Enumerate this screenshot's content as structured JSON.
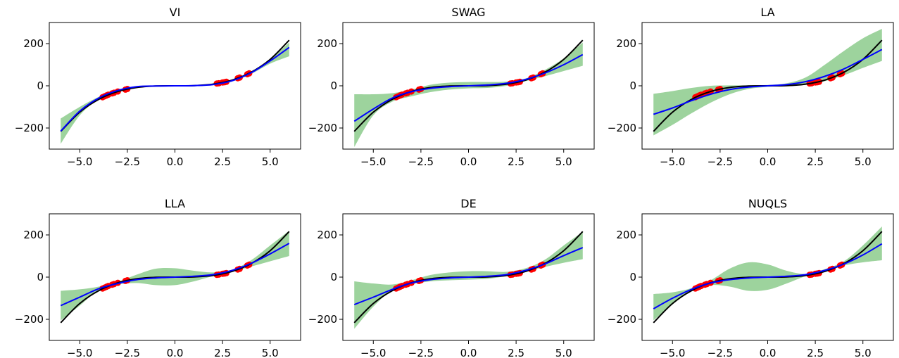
{
  "figure": {
    "background": "#ffffff",
    "colors": {
      "truth": "#000000",
      "mean": "#0000ff",
      "band": "#4cae4c",
      "points": "#ff0000"
    }
  },
  "chart_data": [
    {
      "type": "line",
      "title": "VI",
      "xlabel": "",
      "ylabel": "",
      "xlim": [
        -6.6,
        6.6
      ],
      "ylim": [
        -300,
        300
      ],
      "xticks": [
        -5.0,
        -2.5,
        0.0,
        2.5,
        5.0
      ],
      "yticks": [
        -200,
        0,
        200
      ],
      "xtick_labels": [
        "−5.0",
        "−2.5",
        "0.0",
        "2.5",
        "5.0"
      ],
      "ytick_labels": [
        "−200",
        "0",
        "200"
      ],
      "grid": false,
      "series": [
        {
          "role": "truth",
          "x": [
            -6,
            -5,
            -4,
            -3,
            -2,
            -1,
            0,
            1,
            2,
            3,
            4,
            5,
            6
          ],
          "y": [
            -216,
            -125,
            -64,
            -27,
            -8,
            -1,
            0,
            1,
            8,
            27,
            64,
            125,
            216
          ]
        },
        {
          "role": "mean",
          "x": [
            -6,
            -5,
            -4,
            -3,
            -2,
            -1,
            0,
            1,
            2,
            3,
            4,
            5,
            6
          ],
          "y": [
            -215,
            -120,
            -58,
            -22,
            -4,
            -1,
            0,
            1,
            6,
            24,
            62,
            118,
            182
          ]
        },
        {
          "role": "band",
          "x": [
            -6,
            -5,
            -4,
            -3,
            -2,
            -1,
            0,
            1,
            2,
            3,
            4,
            5,
            6
          ],
          "upper": [
            -155,
            -100,
            -52,
            -18,
            -2,
            0,
            1,
            2,
            8,
            28,
            68,
            125,
            205
          ],
          "lower": [
            -275,
            -140,
            -64,
            -28,
            -6,
            -2,
            -1,
            0,
            4,
            20,
            56,
            105,
            140
          ]
        },
        {
          "role": "points",
          "x": [
            -3.8,
            -3.7,
            -3.6,
            -3.5,
            -3.3,
            -3.2,
            -3.0,
            -2.6,
            -2.5,
            2.2,
            2.3,
            2.5,
            2.6,
            2.7,
            3.3,
            3.4,
            3.8,
            3.9
          ],
          "y": [
            -54,
            -50,
            -46,
            -42,
            -36,
            -33,
            -27,
            -18,
            -15,
            11,
            12,
            16,
            17,
            19,
            36,
            39,
            55,
            59
          ]
        }
      ]
    },
    {
      "type": "line",
      "title": "SWAG",
      "xlabel": "",
      "ylabel": "",
      "xlim": [
        -6.6,
        6.6
      ],
      "ylim": [
        -300,
        300
      ],
      "xticks": [
        -5.0,
        -2.5,
        0.0,
        2.5,
        5.0
      ],
      "yticks": [
        -200,
        0,
        200
      ],
      "xtick_labels": [
        "−5.0",
        "−2.5",
        "0.0",
        "2.5",
        "5.0"
      ],
      "ytick_labels": [
        "−200",
        "0",
        "200"
      ],
      "grid": false,
      "series": [
        {
          "role": "truth",
          "x": [
            -6,
            -5,
            -4,
            -3,
            -2,
            -1,
            0,
            1,
            2,
            3,
            4,
            5,
            6
          ],
          "y": [
            -216,
            -125,
            -64,
            -27,
            -8,
            -1,
            0,
            1,
            8,
            27,
            64,
            125,
            216
          ]
        },
        {
          "role": "mean",
          "x": [
            -6,
            -5,
            -4,
            -3,
            -2,
            -1,
            0,
            1,
            2,
            3,
            4,
            5,
            6
          ],
          "y": [
            -168,
            -110,
            -58,
            -28,
            -12,
            -4,
            0,
            4,
            12,
            30,
            60,
            100,
            148
          ]
        },
        {
          "role": "band",
          "x": [
            -6,
            -5,
            -4,
            -3,
            -2,
            -1,
            0,
            1,
            2,
            3,
            4,
            5,
            6
          ],
          "upper": [
            -40,
            -40,
            -35,
            -18,
            5,
            15,
            18,
            18,
            20,
            35,
            75,
            130,
            205
          ],
          "lower": [
            -290,
            -140,
            -75,
            -50,
            -30,
            -18,
            -12,
            -10,
            0,
            22,
            45,
            70,
            95
          ]
        },
        {
          "role": "points",
          "x": [
            -3.8,
            -3.7,
            -3.6,
            -3.5,
            -3.3,
            -3.2,
            -3.0,
            -2.6,
            -2.5,
            2.2,
            2.3,
            2.5,
            2.6,
            2.7,
            3.3,
            3.4,
            3.8,
            3.9
          ],
          "y": [
            -54,
            -50,
            -46,
            -42,
            -36,
            -33,
            -27,
            -18,
            -15,
            11,
            12,
            16,
            17,
            19,
            36,
            39,
            55,
            59
          ]
        }
      ]
    },
    {
      "type": "line",
      "title": "LA",
      "xlabel": "",
      "ylabel": "",
      "xlim": [
        -6.6,
        6.6
      ],
      "ylim": [
        -300,
        300
      ],
      "xticks": [
        -5.0,
        -2.5,
        0.0,
        2.5,
        5.0
      ],
      "yticks": [
        -200,
        0,
        200
      ],
      "xtick_labels": [
        "−5.0",
        "−2.5",
        "0.0",
        "2.5",
        "5.0"
      ],
      "ytick_labels": [
        "−200",
        "0",
        "200"
      ],
      "grid": false,
      "series": [
        {
          "role": "truth",
          "x": [
            -6,
            -5,
            -4,
            -3,
            -2,
            -1,
            0,
            1,
            2,
            3,
            4,
            5,
            6
          ],
          "y": [
            -216,
            -125,
            -64,
            -27,
            -8,
            -1,
            0,
            1,
            8,
            27,
            64,
            125,
            216
          ]
        },
        {
          "role": "mean",
          "x": [
            -6,
            -5,
            -4,
            -3,
            -2,
            -1,
            0,
            1,
            2,
            3,
            4,
            5,
            6
          ],
          "y": [
            -135,
            -105,
            -70,
            -40,
            -18,
            -6,
            0,
            6,
            20,
            45,
            80,
            125,
            172
          ]
        },
        {
          "role": "band",
          "x": [
            -6,
            -5,
            -4,
            -3,
            -2,
            -1,
            0,
            1,
            2,
            3,
            4,
            5,
            6
          ],
          "upper": [
            -38,
            -25,
            -10,
            0,
            2,
            2,
            4,
            12,
            40,
            100,
            165,
            225,
            270
          ],
          "lower": [
            -235,
            -185,
            -130,
            -80,
            -40,
            -15,
            -5,
            0,
            5,
            22,
            50,
            85,
            118
          ]
        },
        {
          "role": "points",
          "x": [
            -3.8,
            -3.7,
            -3.6,
            -3.5,
            -3.3,
            -3.2,
            -3.0,
            -2.6,
            -2.5,
            2.2,
            2.3,
            2.5,
            2.6,
            2.7,
            3.3,
            3.4,
            3.8,
            3.9
          ],
          "y": [
            -54,
            -50,
            -46,
            -42,
            -36,
            -33,
            -27,
            -18,
            -15,
            11,
            12,
            16,
            17,
            19,
            36,
            39,
            55,
            59
          ]
        }
      ]
    },
    {
      "type": "line",
      "title": "LLA",
      "xlabel": "",
      "ylabel": "",
      "xlim": [
        -6.6,
        6.6
      ],
      "ylim": [
        -300,
        300
      ],
      "xticks": [
        -5.0,
        -2.5,
        0.0,
        2.5,
        5.0
      ],
      "yticks": [
        -200,
        0,
        200
      ],
      "xtick_labels": [
        "−5.0",
        "−2.5",
        "0.0",
        "2.5",
        "5.0"
      ],
      "ytick_labels": [
        "−200",
        "0",
        "200"
      ],
      "grid": false,
      "series": [
        {
          "role": "truth",
          "x": [
            -6,
            -5,
            -4,
            -3,
            -2,
            -1,
            0,
            1,
            2,
            3,
            4,
            5,
            6
          ],
          "y": [
            -216,
            -125,
            -64,
            -27,
            -8,
            -1,
            0,
            1,
            8,
            27,
            64,
            125,
            216
          ]
        },
        {
          "role": "mean",
          "x": [
            -6,
            -5,
            -4,
            -3,
            -2,
            -1,
            0,
            1,
            2,
            3,
            4,
            5,
            6
          ],
          "y": [
            -135,
            -95,
            -55,
            -30,
            -12,
            -4,
            0,
            4,
            12,
            32,
            65,
            110,
            160
          ]
        },
        {
          "role": "band",
          "x": [
            -6,
            -5,
            -4,
            -3,
            -2,
            -1,
            0,
            1,
            2,
            3,
            4,
            5,
            6
          ],
          "upper": [
            -65,
            -58,
            -45,
            -22,
            12,
            40,
            42,
            30,
            22,
            35,
            80,
            150,
            220
          ],
          "lower": [
            -205,
            -135,
            -60,
            -35,
            -28,
            -38,
            -38,
            -20,
            5,
            25,
            50,
            75,
            100
          ]
        },
        {
          "role": "points",
          "x": [
            -3.8,
            -3.7,
            -3.6,
            -3.5,
            -3.3,
            -3.2,
            -3.0,
            -2.6,
            -2.5,
            2.2,
            2.3,
            2.5,
            2.6,
            2.7,
            3.3,
            3.4,
            3.8,
            3.9
          ],
          "y": [
            -54,
            -50,
            -46,
            -42,
            -36,
            -33,
            -27,
            -18,
            -15,
            11,
            12,
            16,
            17,
            19,
            36,
            39,
            55,
            59
          ]
        }
      ]
    },
    {
      "type": "line",
      "title": "DE",
      "xlabel": "",
      "ylabel": "",
      "xlim": [
        -6.6,
        6.6
      ],
      "ylim": [
        -300,
        300
      ],
      "xticks": [
        -5.0,
        -2.5,
        0.0,
        2.5,
        5.0
      ],
      "yticks": [
        -200,
        0,
        200
      ],
      "xtick_labels": [
        "−5.0",
        "−2.5",
        "0.0",
        "2.5",
        "5.0"
      ],
      "ytick_labels": [
        "−200",
        "0",
        "200"
      ],
      "grid": false,
      "series": [
        {
          "role": "truth",
          "x": [
            -6,
            -5,
            -4,
            -3,
            -2,
            -1,
            0,
            1,
            2,
            3,
            4,
            5,
            6
          ],
          "y": [
            -216,
            -125,
            -64,
            -27,
            -8,
            -1,
            0,
            1,
            8,
            27,
            64,
            125,
            216
          ]
        },
        {
          "role": "mean",
          "x": [
            -6,
            -5,
            -4,
            -3,
            -2,
            -1,
            0,
            1,
            2,
            3,
            4,
            5,
            6
          ],
          "y": [
            -130,
            -95,
            -58,
            -28,
            -12,
            -4,
            0,
            4,
            12,
            32,
            62,
            102,
            140
          ]
        },
        {
          "role": "band",
          "x": [
            -6,
            -5,
            -4,
            -3,
            -2,
            -1,
            0,
            1,
            2,
            3,
            4,
            5,
            6
          ],
          "upper": [
            -20,
            -30,
            -35,
            -15,
            10,
            22,
            28,
            28,
            25,
            42,
            82,
            150,
            215
          ],
          "lower": [
            -245,
            -140,
            -62,
            -35,
            -20,
            -15,
            -12,
            -8,
            5,
            25,
            48,
            68,
            85
          ]
        },
        {
          "role": "points",
          "x": [
            -3.8,
            -3.7,
            -3.6,
            -3.5,
            -3.3,
            -3.2,
            -3.0,
            -2.6,
            -2.5,
            2.2,
            2.3,
            2.5,
            2.6,
            2.7,
            3.3,
            3.4,
            3.8,
            3.9
          ],
          "y": [
            -54,
            -50,
            -46,
            -42,
            -36,
            -33,
            -27,
            -18,
            -15,
            11,
            12,
            16,
            17,
            19,
            36,
            39,
            55,
            59
          ]
        }
      ]
    },
    {
      "type": "line",
      "title": "NUQLS",
      "xlabel": "",
      "ylabel": "",
      "xlim": [
        -6.6,
        6.6
      ],
      "ylim": [
        -300,
        300
      ],
      "xticks": [
        -5.0,
        -2.5,
        0.0,
        2.5,
        5.0
      ],
      "yticks": [
        -200,
        0,
        200
      ],
      "xtick_labels": [
        "−5.0",
        "−2.5",
        "0.0",
        "2.5",
        "5.0"
      ],
      "ytick_labels": [
        "−200",
        "0",
        "200"
      ],
      "grid": false,
      "series": [
        {
          "role": "truth",
          "x": [
            -6,
            -5,
            -4,
            -3,
            -2,
            -1,
            0,
            1,
            2,
            3,
            4,
            5,
            6
          ],
          "y": [
            -216,
            -125,
            -64,
            -27,
            -8,
            -1,
            0,
            1,
            8,
            27,
            64,
            125,
            216
          ]
        },
        {
          "role": "mean",
          "x": [
            -6,
            -5,
            -4,
            -3,
            -2,
            -1,
            0,
            1,
            2,
            3,
            4,
            5,
            6
          ],
          "y": [
            -150,
            -100,
            -58,
            -28,
            -12,
            -4,
            0,
            4,
            12,
            32,
            62,
            105,
            158
          ]
        },
        {
          "role": "band",
          "x": [
            -6,
            -5,
            -4,
            -3,
            -2,
            -1,
            0,
            1,
            2,
            3,
            4,
            5,
            6
          ],
          "upper": [
            -80,
            -72,
            -52,
            -15,
            40,
            70,
            60,
            30,
            15,
            38,
            75,
            150,
            240
          ],
          "lower": [
            -205,
            -130,
            -62,
            -38,
            -45,
            -65,
            -60,
            -30,
            5,
            28,
            55,
            70,
            80
          ]
        },
        {
          "role": "points",
          "x": [
            -3.8,
            -3.7,
            -3.6,
            -3.5,
            -3.3,
            -3.2,
            -3.0,
            -2.6,
            -2.5,
            2.2,
            2.3,
            2.5,
            2.6,
            2.7,
            3.3,
            3.4,
            3.8,
            3.9
          ],
          "y": [
            -54,
            -50,
            -46,
            -42,
            -36,
            -33,
            -27,
            -18,
            -15,
            11,
            12,
            16,
            17,
            19,
            36,
            39,
            55,
            59
          ]
        }
      ]
    }
  ]
}
